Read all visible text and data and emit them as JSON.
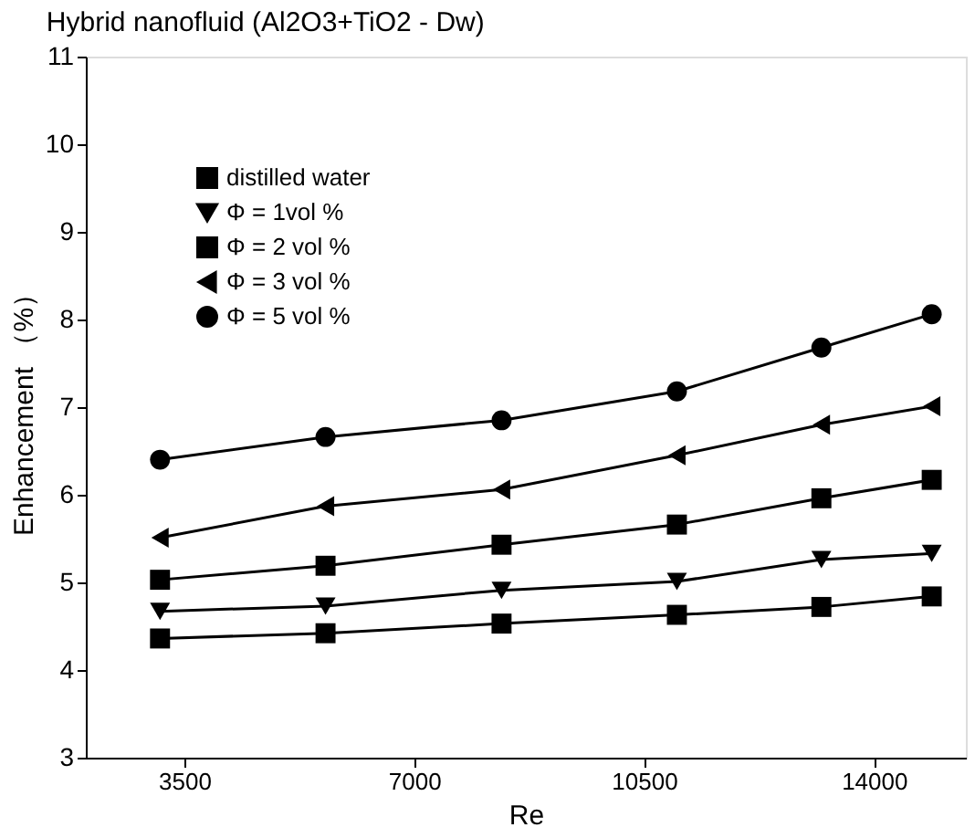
{
  "chart_data": {
    "type": "line",
    "title": "Hybrid nanofluid (Al2O3+TiO2 - Dw)",
    "xlabel": "Re",
    "ylabel": "Enhancement （%）",
    "x": [
      3130,
      5650,
      8330,
      11000,
      13200,
      14880
    ],
    "series": [
      {
        "name": "distilled water",
        "color": "#000000",
        "marker": "square",
        "values": [
          4.36,
          4.42,
          4.53,
          4.63,
          4.72,
          4.84
        ]
      },
      {
        "name": "Φ = 1vol %",
        "color": "#000000",
        "marker": "triangle-down",
        "values": [
          4.67,
          4.73,
          4.91,
          5.01,
          5.26,
          5.33
        ]
      },
      {
        "name": "Φ = 2 vol %",
        "color": "#000000",
        "marker": "square",
        "values": [
          5.03,
          5.19,
          5.43,
          5.66,
          5.96,
          6.17
        ]
      },
      {
        "name": "Φ = 3 vol %",
        "color": "#000000",
        "marker": "triangle-left",
        "values": [
          5.51,
          5.87,
          6.06,
          6.45,
          6.8,
          7.01
        ]
      },
      {
        "name": "Φ = 5 vol %",
        "color": "#000000",
        "marker": "circle",
        "values": [
          6.4,
          6.66,
          6.85,
          7.18,
          7.68,
          8.06
        ]
      }
    ],
    "xlim": [
      2000,
      15400
    ],
    "xticks": [
      3500,
      7000,
      10500,
      14000
    ],
    "ylim": [
      3,
      11
    ],
    "yticks": [
      3,
      4,
      5,
      6,
      7,
      8,
      9,
      10,
      11
    ],
    "grid": false,
    "legend": "top left",
    "line_style": "solid"
  }
}
